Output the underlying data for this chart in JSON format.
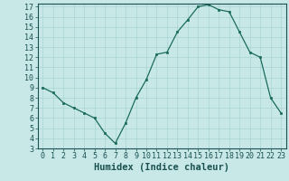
{
  "x": [
    0,
    1,
    2,
    3,
    4,
    5,
    6,
    7,
    8,
    9,
    10,
    11,
    12,
    13,
    14,
    15,
    16,
    17,
    18,
    19,
    20,
    21,
    22,
    23
  ],
  "y": [
    9.0,
    8.5,
    7.5,
    7.0,
    6.5,
    6.0,
    4.5,
    3.5,
    5.5,
    8.0,
    9.8,
    12.3,
    12.5,
    14.5,
    15.7,
    17.0,
    17.2,
    16.7,
    16.5,
    14.5,
    12.5,
    12.0,
    8.0,
    6.5
  ],
  "xlabel": "Humidex (Indice chaleur)",
  "ylim": [
    3,
    17
  ],
  "xlim": [
    0,
    23
  ],
  "yticks": [
    3,
    4,
    5,
    6,
    7,
    8,
    9,
    10,
    11,
    12,
    13,
    14,
    15,
    16,
    17
  ],
  "xticks": [
    0,
    1,
    2,
    3,
    4,
    5,
    6,
    7,
    8,
    9,
    10,
    11,
    12,
    13,
    14,
    15,
    16,
    17,
    18,
    19,
    20,
    21,
    22,
    23
  ],
  "line_color": "#1a6b5a",
  "marker_color": "#1a6b5a",
  "bg_color": "#c8e8e8",
  "grid_color": "#aad4d4",
  "xlabel_fontsize": 7.5,
  "tick_fontsize": 6.0
}
